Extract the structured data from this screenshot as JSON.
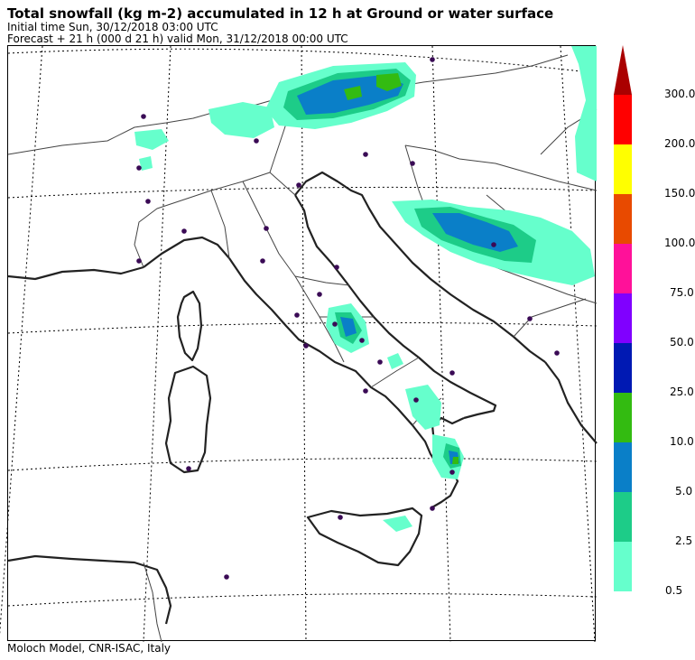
{
  "header": {
    "title": "Total snowfall (kg m-2) accumulated in  12 h at Ground or water surface",
    "init_line": "Initial time  Sun, 30/12/2018  03:00 UTC",
    "forecast_line": "Forecast  +  21 h  (000 d 21 h)  valid Mon, 31/12/2018 00:00 UTC"
  },
  "footer": {
    "credit": "Moloch Model, CNR-ISAC, Italy"
  },
  "legend": {
    "levels": [
      {
        "label": "0.5",
        "color": "#66ffcc"
      },
      {
        "label": "2.5",
        "color": "#1dcc88"
      },
      {
        "label": "5.0",
        "color": "#0a7fc8"
      },
      {
        "label": "10.0",
        "color": "#33bb11"
      },
      {
        "label": "25.0",
        "color": "#0019b3"
      },
      {
        "label": "50.0",
        "color": "#8000ff"
      },
      {
        "label": "75.0",
        "color": "#ff1199"
      },
      {
        "label": "100.0",
        "color": "#e84a00"
      },
      {
        "label": "150.0",
        "color": "#ffff00"
      },
      {
        "label": "200.0",
        "color": "#ff0000"
      },
      {
        "label": "300.0",
        "color": "#aa0000"
      }
    ],
    "arrow_color": "#aa0000"
  },
  "map": {
    "coast_color": "#222222",
    "border_color": "#444444",
    "graticule_color": "#000000",
    "city_dot_color": "#3a0a55"
  }
}
